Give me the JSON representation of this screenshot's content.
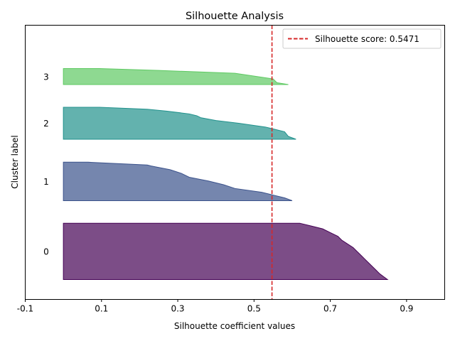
{
  "chart_data": {
    "type": "area",
    "title": "Silhouette Analysis",
    "xlabel": "Silhouette coefficient values",
    "ylabel": "Cluster label",
    "xlim": [
      -0.1,
      1.0
    ],
    "xticks": [
      -0.1,
      0.1,
      0.3,
      0.5,
      0.7,
      0.9
    ],
    "xtick_labels": [
      "-0.1",
      "0.1",
      "0.3",
      "0.5",
      "0.7",
      "0.9"
    ],
    "grid": false,
    "legend": {
      "position": "top-right",
      "label": "Silhouette score: 0.5471"
    },
    "score_line": {
      "value": 0.5471,
      "color": "#d62728",
      "style": "dashed"
    },
    "clusters": [
      {
        "label": "0",
        "color": "#440154",
        "samples": 60,
        "profile": [
          [
            0,
            0.85
          ],
          [
            3,
            0.84
          ],
          [
            6,
            0.83
          ],
          [
            10,
            0.82
          ],
          [
            14,
            0.81
          ],
          [
            18,
            0.8
          ],
          [
            22,
            0.79
          ],
          [
            26,
            0.78
          ],
          [
            30,
            0.77
          ],
          [
            34,
            0.76
          ],
          [
            38,
            0.745
          ],
          [
            42,
            0.73
          ],
          [
            46,
            0.72
          ],
          [
            50,
            0.7
          ],
          [
            54,
            0.68
          ],
          [
            57,
            0.65
          ],
          [
            60,
            0.62
          ]
        ]
      },
      {
        "label": "1",
        "color": "#3b528b",
        "samples": 41,
        "profile": [
          [
            0,
            0.6
          ],
          [
            3,
            0.58
          ],
          [
            6,
            0.55
          ],
          [
            9,
            0.52
          ],
          [
            13,
            0.45
          ],
          [
            17,
            0.42
          ],
          [
            21,
            0.38
          ],
          [
            25,
            0.33
          ],
          [
            29,
            0.31
          ],
          [
            33,
            0.28
          ],
          [
            37,
            0.23
          ],
          [
            38,
            0.22
          ],
          [
            41,
            0.065
          ]
        ]
      },
      {
        "label": "2",
        "color": "#21918c",
        "samples": 34,
        "profile": [
          [
            0,
            0.61
          ],
          [
            3,
            0.59
          ],
          [
            8,
            0.58
          ],
          [
            13,
            0.53
          ],
          [
            17,
            0.46
          ],
          [
            20,
            0.4
          ],
          [
            23,
            0.36
          ],
          [
            25,
            0.35
          ],
          [
            27,
            0.33
          ],
          [
            30,
            0.27
          ],
          [
            32,
            0.22
          ],
          [
            34,
            0.095
          ]
        ]
      },
      {
        "label": "3",
        "color": "#5ec962",
        "samples": 17,
        "profile": [
          [
            0,
            0.59
          ],
          [
            2,
            0.56
          ],
          [
            6,
            0.55
          ],
          [
            12,
            0.45
          ],
          [
            15,
            0.25
          ],
          [
            17,
            0.095
          ]
        ]
      }
    ]
  }
}
